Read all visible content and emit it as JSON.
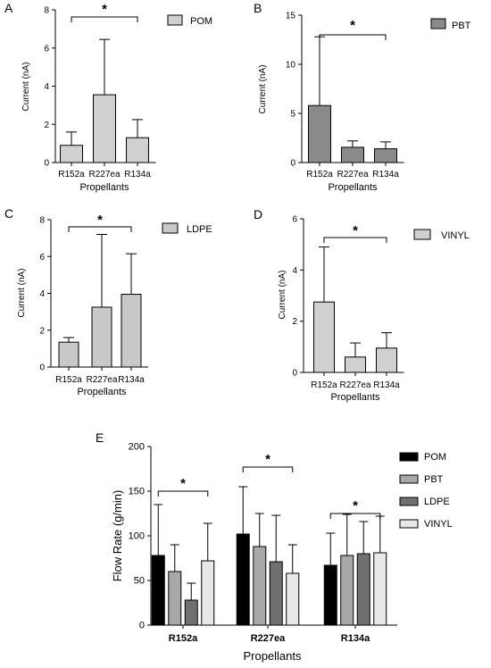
{
  "chart_data": [
    {
      "panel": "A",
      "type": "bar",
      "categories": [
        "R152a",
        "R227ea",
        "R134a"
      ],
      "series": [
        {
          "name": "POM",
          "values": [
            0.9,
            3.55,
            1.3
          ],
          "errors": [
            0.7,
            2.9,
            0.95
          ]
        }
      ],
      "xlabel": "Propellants",
      "ylabel": "Current (nA)",
      "ylim": [
        0,
        8
      ],
      "yticks": [
        "0",
        "2",
        "4",
        "6",
        "8"
      ],
      "significance": {
        "from": "R152a",
        "to": "R134a",
        "label": "*"
      },
      "legend": "top-right",
      "fill": "#d0d0d0"
    },
    {
      "panel": "B",
      "type": "bar",
      "categories": [
        "R152a",
        "R227ea",
        "R134a"
      ],
      "series": [
        {
          "name": "PBT",
          "values": [
            5.8,
            1.55,
            1.4
          ],
          "errors": [
            7.0,
            0.65,
            0.7
          ]
        }
      ],
      "xlabel": "Propellants",
      "ylabel": "Current (nA)",
      "ylim": [
        0,
        15
      ],
      "yticks": [
        "0",
        "5",
        "10",
        "15"
      ],
      "significance": {
        "from": "R152a",
        "to": "R134a",
        "label": "*"
      },
      "legend": "top-right",
      "fill": "#8a8a8a"
    },
    {
      "panel": "C",
      "type": "bar",
      "categories": [
        "R152a",
        "R227ea",
        "R134a"
      ],
      "series": [
        {
          "name": "LDPE",
          "values": [
            1.35,
            3.25,
            3.95
          ],
          "errors": [
            0.25,
            3.95,
            2.2
          ]
        }
      ],
      "xlabel": "Propellants",
      "ylabel": "Current (nA)",
      "ylim": [
        0,
        8
      ],
      "yticks": [
        "0",
        "2",
        "4",
        "6",
        "8"
      ],
      "significance": {
        "from": "R152a",
        "to": "R134a",
        "label": "*"
      },
      "legend": "top-right",
      "fill": "#c8c8c8"
    },
    {
      "panel": "D",
      "type": "bar",
      "categories": [
        "R152a",
        "R227ea",
        "R134a"
      ],
      "series": [
        {
          "name": "VINYL",
          "values": [
            2.75,
            0.6,
            0.95
          ],
          "errors": [
            2.15,
            0.55,
            0.6
          ]
        }
      ],
      "xlabel": "Propellants",
      "ylabel": "Current (nA)",
      "ylim": [
        0,
        6
      ],
      "yticks": [
        "0",
        "2",
        "4",
        "6"
      ],
      "significance": {
        "from": "R152a",
        "to": "R134a",
        "label": "*"
      },
      "legend": "top-right",
      "fill": "#d0d0d0"
    },
    {
      "panel": "E",
      "type": "bar",
      "categories": [
        "R152a",
        "R227ea",
        "R134a"
      ],
      "series": [
        {
          "name": "POM",
          "values": [
            78,
            102,
            67
          ],
          "errors": [
            57,
            53,
            36
          ],
          "fill": "#000000"
        },
        {
          "name": "PBT",
          "values": [
            60,
            88,
            78
          ],
          "errors": [
            30,
            37,
            46
          ],
          "fill": "#a8a8a8"
        },
        {
          "name": "LDPE",
          "values": [
            28,
            71,
            80
          ],
          "errors": [
            19,
            52,
            36
          ],
          "fill": "#707070"
        },
        {
          "name": "VINYL",
          "values": [
            72,
            58,
            81
          ],
          "errors": [
            42,
            32,
            41
          ],
          "fill": "#e8e8e8"
        }
      ],
      "xlabel": "Propellants",
      "ylabel": "Flow Rate (g/min)",
      "ylim": [
        0,
        200
      ],
      "yticks": [
        "0",
        "50",
        "100",
        "150",
        "200"
      ],
      "significance": [
        {
          "category": "R152a",
          "label": "*"
        },
        {
          "category": "R227ea",
          "label": "*"
        },
        {
          "category": "R134a",
          "label": "*"
        }
      ],
      "legend": "right"
    }
  ]
}
